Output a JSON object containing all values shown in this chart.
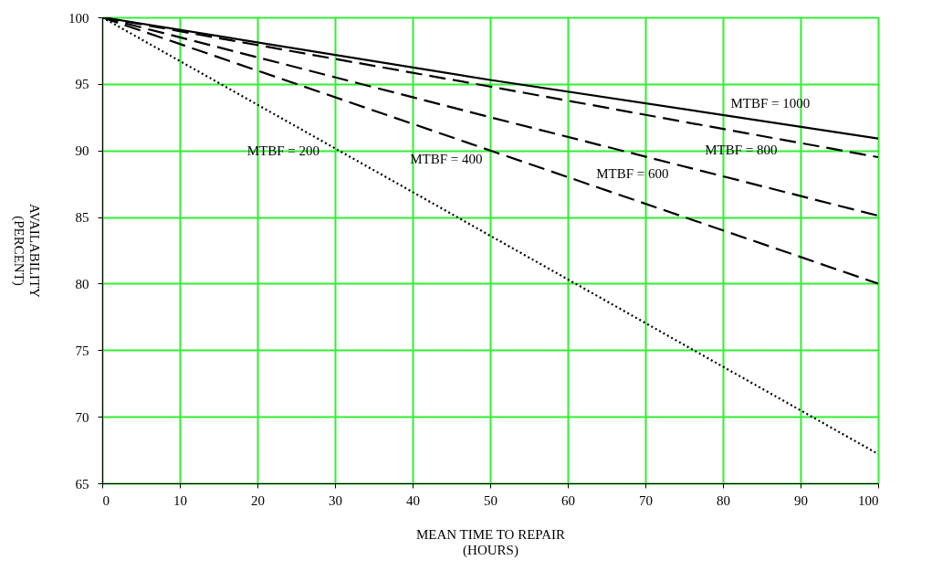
{
  "chart_data": {
    "type": "line",
    "xlabel": "MEAN TIME TO REPAIR\n(HOURS)",
    "ylabel": "AVAILABILITY\n(PERCENT)",
    "x": [
      0,
      50,
      100
    ],
    "series": [
      {
        "name": "MTBF = 1000",
        "color": "#000000",
        "line_style": "solid",
        "values": [
          100,
          95.3,
          90.9
        ]
      },
      {
        "name": "MTBF = 800",
        "color": "#000000",
        "line_style": "dashed",
        "values": [
          100,
          94.8,
          89.5
        ]
      },
      {
        "name": "MTBF = 600",
        "color": "#000000",
        "line_style": "dashed",
        "values": [
          100,
          92.5,
          85.1
        ]
      },
      {
        "name": "MTBF = 400",
        "color": "#000000",
        "line_style": "dashed",
        "values": [
          100,
          90,
          80
        ]
      },
      {
        "name": "MTBF = 200",
        "color": "#000000",
        "line_style": "dotted",
        "values": [
          100,
          83.6,
          67.2
        ]
      }
    ],
    "xlim": [
      0,
      100
    ],
    "xticks": [
      0,
      10,
      20,
      30,
      40,
      50,
      60,
      70,
      80,
      90,
      100
    ],
    "ylim": [
      65,
      100
    ],
    "yticks": [
      65,
      70,
      75,
      80,
      85,
      90,
      95,
      100
    ],
    "grid": true,
    "legend": false
  }
}
